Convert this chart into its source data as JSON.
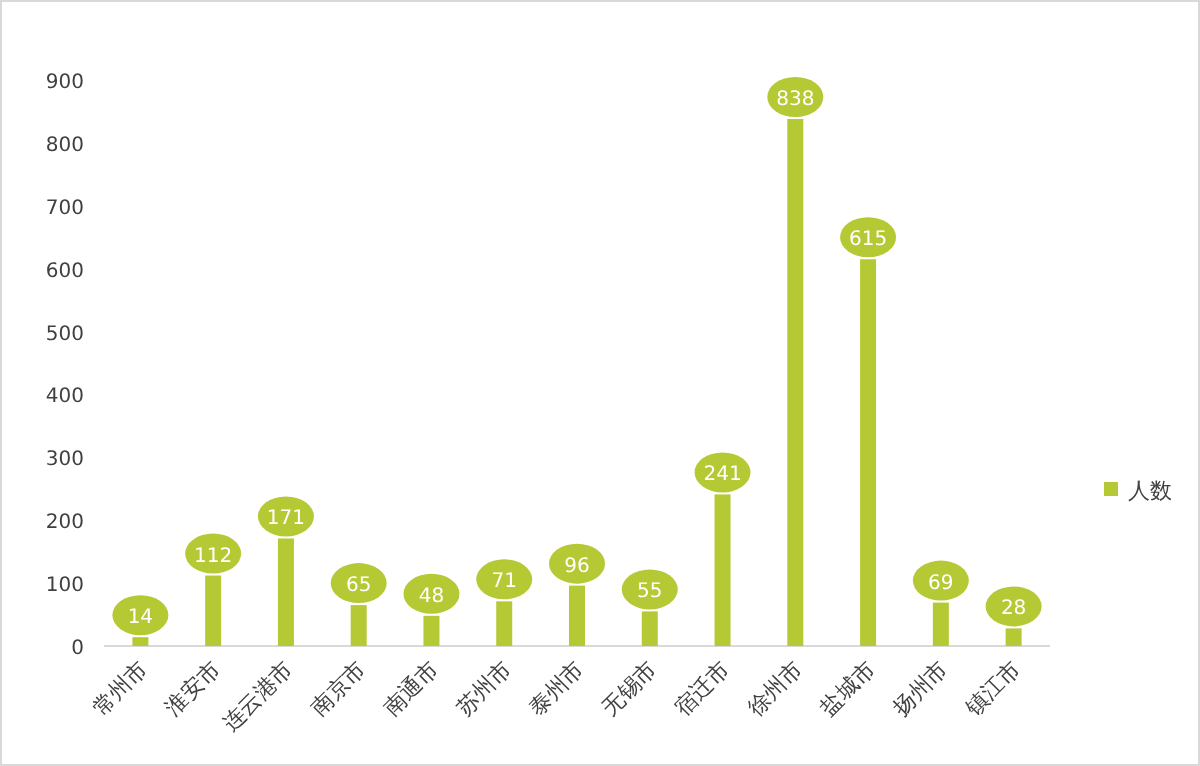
{
  "chart_data": {
    "type": "bar",
    "categories": [
      "常州市",
      "淮安市",
      "连云港市",
      "南京市",
      "南通市",
      "苏州市",
      "泰州市",
      "无锡市",
      "宿迁市",
      "徐州市",
      "盐城市",
      "扬州市",
      "镇江市"
    ],
    "series": [
      {
        "name": "人数",
        "color": "#b5c934",
        "values": [
          14,
          112,
          171,
          65,
          48,
          71,
          96,
          55,
          241,
          838,
          615,
          69,
          28
        ]
      }
    ],
    "ylim": [
      0,
      900
    ],
    "yticks": [
      0,
      100,
      200,
      300,
      400,
      500,
      600,
      700,
      800,
      900
    ],
    "data_labels": true,
    "legend": "right",
    "grid": false
  }
}
